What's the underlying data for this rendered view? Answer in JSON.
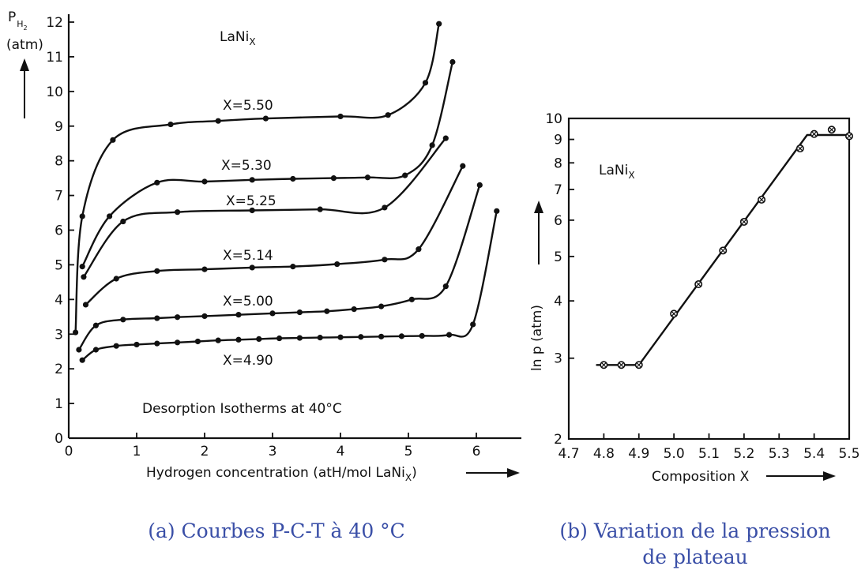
{
  "captions": {
    "a": "(a) Courbes P-C-T à 40 °C",
    "b": "(b) Variation de la pression de plateau"
  },
  "chart_data": [
    {
      "type": "line",
      "title": "Desorption Isotherms at 40°C",
      "inset_label": "LaNiX",
      "xlabel": "Hydrogen concentration (atH/mol LaNiX)",
      "ylabel_main": "PH2",
      "ylabel_unit": "(atm)",
      "xlim": [
        0,
        6.5
      ],
      "ylim": [
        0,
        12
      ],
      "x_ticks": [
        0,
        1,
        2,
        3,
        4,
        5,
        6
      ],
      "y_ticks": [
        0,
        1,
        2,
        3,
        4,
        5,
        6,
        7,
        8,
        9,
        10,
        11,
        12
      ],
      "series": [
        {
          "name": "X=5.50",
          "points": [
            [
              0.1,
              3.05
            ],
            [
              0.2,
              6.4
            ],
            [
              0.65,
              8.6
            ],
            [
              1.5,
              9.05
            ],
            [
              2.2,
              9.15
            ],
            [
              2.9,
              9.22
            ],
            [
              4.0,
              9.28
            ],
            [
              4.7,
              9.32
            ],
            [
              5.25,
              10.25
            ],
            [
              5.45,
              11.95
            ]
          ]
        },
        {
          "name": "X=5.30",
          "points": [
            [
              0.2,
              4.95
            ],
            [
              0.6,
              6.4
            ],
            [
              1.3,
              7.37
            ],
            [
              2.0,
              7.4
            ],
            [
              2.7,
              7.45
            ],
            [
              3.3,
              7.48
            ],
            [
              3.9,
              7.5
            ],
            [
              4.4,
              7.52
            ],
            [
              4.95,
              7.58
            ],
            [
              5.35,
              8.45
            ],
            [
              5.65,
              10.85
            ]
          ]
        },
        {
          "name": "X=5.25",
          "points": [
            [
              0.22,
              4.65
            ],
            [
              0.8,
              6.25
            ],
            [
              1.6,
              6.52
            ],
            [
              2.7,
              6.57
            ],
            [
              3.7,
              6.6
            ],
            [
              4.65,
              6.65
            ],
            [
              5.55,
              8.65
            ]
          ]
        },
        {
          "name": "X=5.14",
          "points": [
            [
              0.25,
              3.85
            ],
            [
              0.7,
              4.6
            ],
            [
              1.3,
              4.82
            ],
            [
              2.0,
              4.87
            ],
            [
              2.7,
              4.92
            ],
            [
              3.3,
              4.95
            ],
            [
              3.95,
              5.02
            ],
            [
              4.65,
              5.15
            ],
            [
              5.15,
              5.45
            ],
            [
              5.8,
              7.85
            ]
          ]
        },
        {
          "name": "X=5.00",
          "points": [
            [
              0.15,
              2.55
            ],
            [
              0.4,
              3.25
            ],
            [
              0.8,
              3.42
            ],
            [
              1.3,
              3.46
            ],
            [
              1.6,
              3.49
            ],
            [
              2.0,
              3.52
            ],
            [
              2.5,
              3.56
            ],
            [
              3.0,
              3.6
            ],
            [
              3.4,
              3.63
            ],
            [
              3.8,
              3.66
            ],
            [
              4.2,
              3.72
            ],
            [
              4.6,
              3.8
            ],
            [
              5.05,
              4.0
            ],
            [
              5.55,
              4.38
            ],
            [
              6.05,
              7.3
            ]
          ]
        },
        {
          "name": "X=4.90",
          "points": [
            [
              0.2,
              2.25
            ],
            [
              0.4,
              2.55
            ],
            [
              0.7,
              2.66
            ],
            [
              1.0,
              2.7
            ],
            [
              1.3,
              2.73
            ],
            [
              1.6,
              2.76
            ],
            [
              1.9,
              2.79
            ],
            [
              2.2,
              2.82
            ],
            [
              2.5,
              2.84
            ],
            [
              2.8,
              2.86
            ],
            [
              3.1,
              2.88
            ],
            [
              3.4,
              2.89
            ],
            [
              3.7,
              2.9
            ],
            [
              4.0,
              2.91
            ],
            [
              4.3,
              2.92
            ],
            [
              4.6,
              2.93
            ],
            [
              4.9,
              2.94
            ],
            [
              5.2,
              2.95
            ],
            [
              5.6,
              2.98
            ],
            [
              5.95,
              3.28
            ],
            [
              6.3,
              6.55
            ]
          ]
        }
      ]
    },
    {
      "type": "line",
      "title": "",
      "inset_label": "LaNiX",
      "xlabel": "Composition X",
      "ylabel": "ln p (atm)",
      "xlim": [
        4.7,
        5.5
      ],
      "ylim": [
        2,
        10
      ],
      "y_scale": "log",
      "x_ticks": [
        "4.7",
        "4.8",
        "4.9",
        "5.0",
        "5.1",
        "5.2",
        "5.3",
        "5.4",
        "5.5"
      ],
      "y_ticks": [
        2,
        3,
        4,
        5,
        6,
        7,
        8,
        9,
        10
      ],
      "series": [
        {
          "name": "",
          "points": [
            [
              4.8,
              2.9
            ],
            [
              4.85,
              2.9
            ],
            [
              4.9,
              2.9
            ],
            [
              5.0,
              3.75
            ],
            [
              5.07,
              4.35
            ],
            [
              5.14,
              5.15
            ],
            [
              5.2,
              5.95
            ],
            [
              5.25,
              6.65
            ],
            [
              5.36,
              8.6
            ],
            [
              5.4,
              9.25
            ],
            [
              5.45,
              9.45
            ],
            [
              5.5,
              9.15
            ]
          ],
          "fit_line": [
            [
              4.78,
              2.9
            ],
            [
              4.9,
              2.9
            ],
            [
              5.38,
              9.2
            ],
            [
              5.5,
              9.2
            ]
          ]
        }
      ]
    }
  ]
}
